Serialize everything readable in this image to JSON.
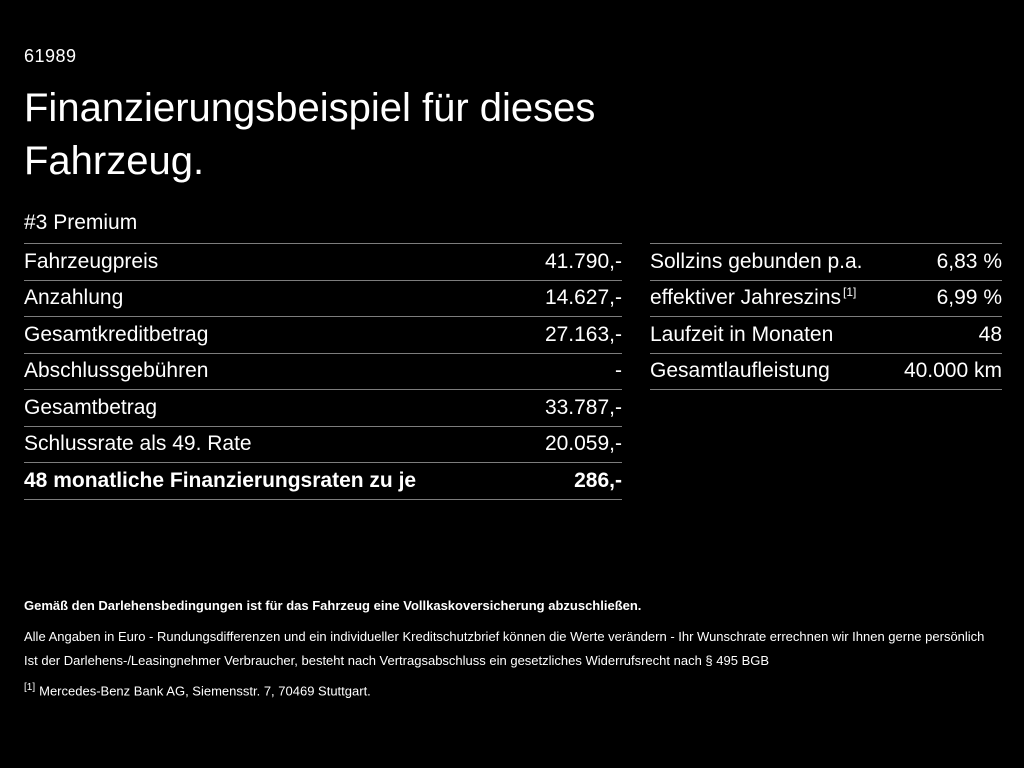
{
  "header": {
    "code": "61989",
    "title": "Finanzierungsbeispiel für dieses Fahrzeug.",
    "model": "#3 Premium"
  },
  "finance_table": {
    "rows": [
      {
        "label": "Fahrzeugpreis",
        "value": "41.790,-"
      },
      {
        "label": "Anzahlung",
        "value": "14.627,-"
      },
      {
        "label": "Gesamtkreditbetrag",
        "value": "27.163,-"
      },
      {
        "label": "Abschlussgebühren",
        "value": "-"
      },
      {
        "label": "Gesamtbetrag",
        "value": "33.787,-"
      },
      {
        "label": "Schlussrate als 49. Rate",
        "value": "20.059,-"
      },
      {
        "label": "48 monatliche Finanzierungsraten zu je",
        "value": "286,-"
      }
    ]
  },
  "conditions_table": {
    "rows": [
      {
        "label": "Sollzins gebunden p.a.",
        "sup": "",
        "value": "6,83 %"
      },
      {
        "label": "effektiver Jahreszins",
        "sup": "[1]",
        "value": "6,99 %"
      },
      {
        "label": "Laufzeit in Monaten",
        "sup": "",
        "value": "48"
      },
      {
        "label": "Gesamtlaufleistung",
        "sup": "",
        "value": "40.000 km"
      }
    ]
  },
  "footer": {
    "insurance_note": "Gemäß den Darlehensbedingungen ist für das Fahrzeug eine Vollkaskoversicherung abzuschließen.",
    "disclaimer1": "Alle Angaben in Euro - Rundungsdifferenzen und ein individueller Kreditschutzbrief können die Werte verändern - Ihr Wunschrate errechnen wir Ihnen gerne persönlich",
    "disclaimer2": "Ist der Darlehens-/Leasingnehmer Verbraucher, besteht nach Vertragsabschluss ein gesetzliches Widerrufsrecht nach § 495 BGB",
    "footnote_marker": "[1]",
    "footnote_text": "Mercedes-Benz Bank AG, Siemensstr. 7, 70469 Stuttgart."
  },
  "colors": {
    "background": "#000000",
    "text": "#ffffff",
    "divider": "#7d7d7d"
  }
}
